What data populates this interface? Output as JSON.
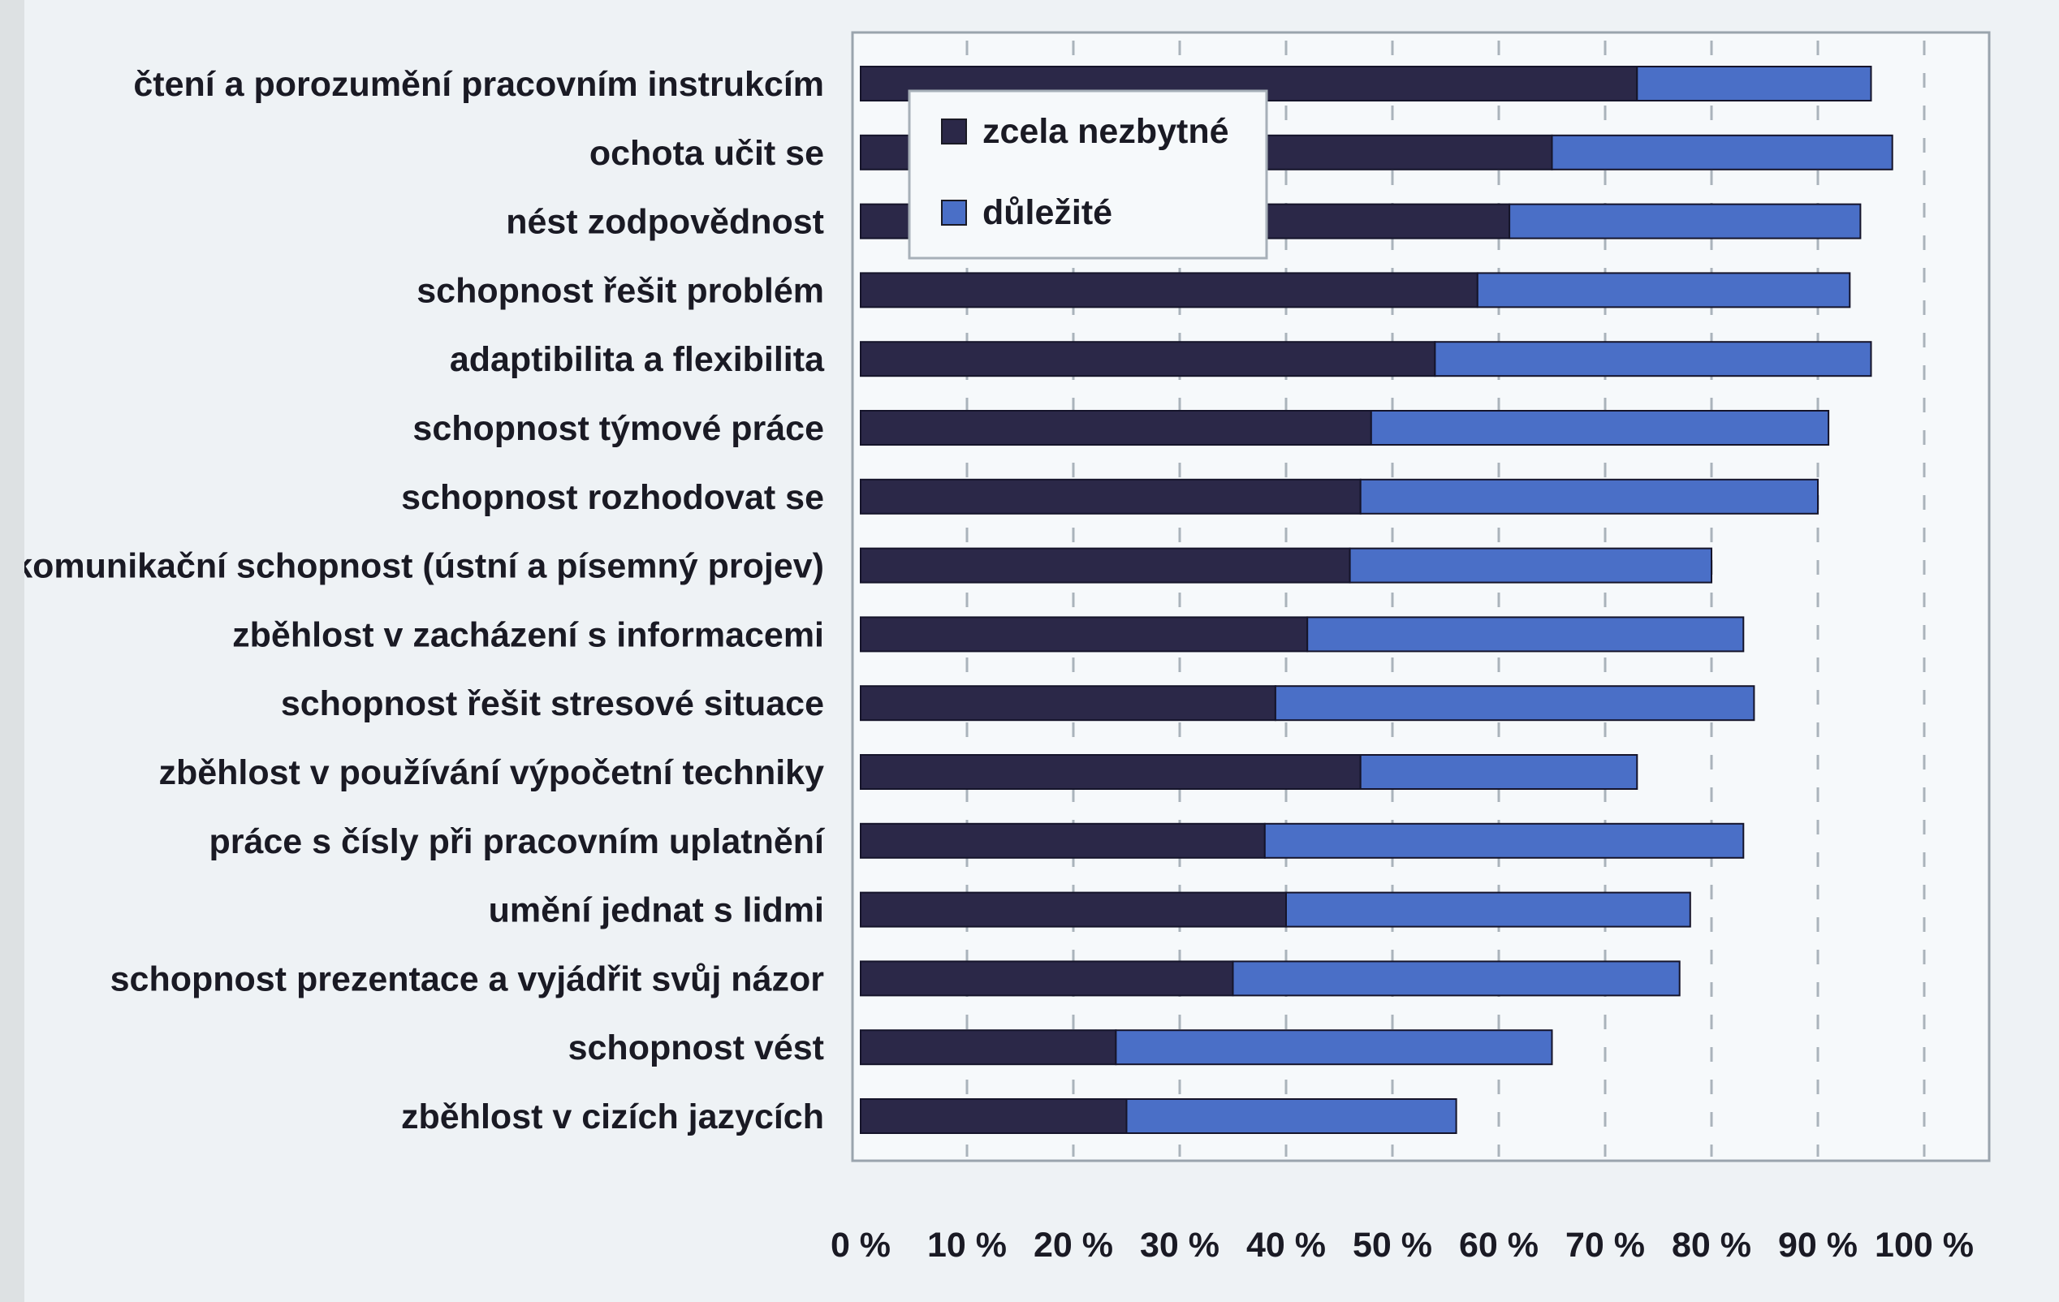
{
  "chart_data": {
    "type": "bar",
    "orientation": "horizontal",
    "stacked": true,
    "categories": [
      "čtení a porozumění pracovním instrukcím",
      "ochota učit se",
      "nést zodpovědnost",
      "schopnost řešit problém",
      "adaptibilita a flexibilita",
      "schopnost týmové práce",
      "schopnost rozhodovat se",
      "komunikační schopnost (ústní a písemný projev)",
      "zběhlost v zacházení s informacemi",
      "schopnost řešit stresové situace",
      "zběhlost v používání výpočetní techniky",
      "práce s čísly při pracovním uplatnění",
      "umění jednat s lidmi",
      "schopnost prezentace a vyjádřit svůj názor",
      "schopnost vést",
      "zběhlost v cizích jazycích"
    ],
    "series": [
      {
        "name": "zcela nezbytné",
        "color": "#2b2848",
        "values": [
          73,
          65,
          61,
          58,
          54,
          48,
          47,
          46,
          42,
          39,
          47,
          38,
          40,
          35,
          24,
          25
        ]
      },
      {
        "name": "důležité",
        "color": "#4a6fc7",
        "values": [
          22,
          32,
          33,
          35,
          41,
          43,
          43,
          34,
          41,
          45,
          26,
          45,
          38,
          42,
          41,
          31
        ]
      }
    ],
    "xlim": [
      0,
      100
    ],
    "x_ticks": [
      "0 %",
      "10 %",
      "20 %",
      "30 %",
      "40 %",
      "50 %",
      "60 %",
      "70 %",
      "80 %",
      "90 %",
      "100 %"
    ],
    "grid": "vertical dashed",
    "legend_position": "top-left inside plot"
  }
}
